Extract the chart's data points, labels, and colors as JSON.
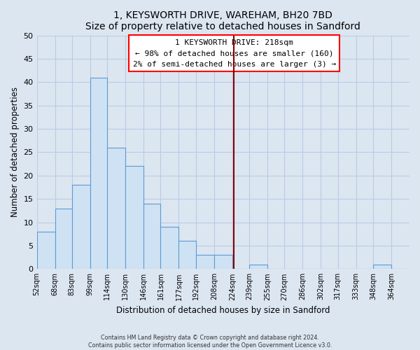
{
  "title": "1, KEYSWORTH DRIVE, WAREHAM, BH20 7BD",
  "subtitle": "Size of property relative to detached houses in Sandford",
  "xlabel": "Distribution of detached houses by size in Sandford",
  "ylabel": "Number of detached properties",
  "footer_lines": [
    "Contains HM Land Registry data © Crown copyright and database right 2024.",
    "Contains public sector information licensed under the Open Government Licence v3.0."
  ],
  "bin_labels": [
    "52sqm",
    "68sqm",
    "83sqm",
    "99sqm",
    "114sqm",
    "130sqm",
    "146sqm",
    "161sqm",
    "177sqm",
    "192sqm",
    "208sqm",
    "224sqm",
    "239sqm",
    "255sqm",
    "270sqm",
    "286sqm",
    "302sqm",
    "317sqm",
    "333sqm",
    "348sqm",
    "364sqm"
  ],
  "bin_counts": [
    8,
    13,
    18,
    41,
    26,
    22,
    14,
    9,
    6,
    3,
    3,
    0,
    1,
    0,
    0,
    0,
    0,
    0,
    0,
    1,
    0
  ],
  "bar_color": "#cfe2f3",
  "bar_edge_color": "#5b9bd5",
  "annotation_text_line1": "1 KEYSWORTH DRIVE: 218sqm",
  "annotation_text_line2": "← 98% of detached houses are smaller (160)",
  "annotation_text_line3": "2% of semi-detached houses are larger (3) →",
  "ylim": [
    0,
    50
  ],
  "yticks": [
    0,
    5,
    10,
    15,
    20,
    25,
    30,
    35,
    40,
    45,
    50
  ],
  "bin_width": 15,
  "bin_centers": [
    52,
    68,
    83,
    99,
    114,
    130,
    146,
    161,
    177,
    192,
    208,
    224,
    239,
    255,
    270,
    286,
    302,
    317,
    333,
    348,
    364
  ],
  "property_value": 218,
  "background_color": "#dce6f1",
  "plot_bg_color": "#dce6f1",
  "grid_color": "#b8cce4",
  "red_line_color": "#8b0000"
}
